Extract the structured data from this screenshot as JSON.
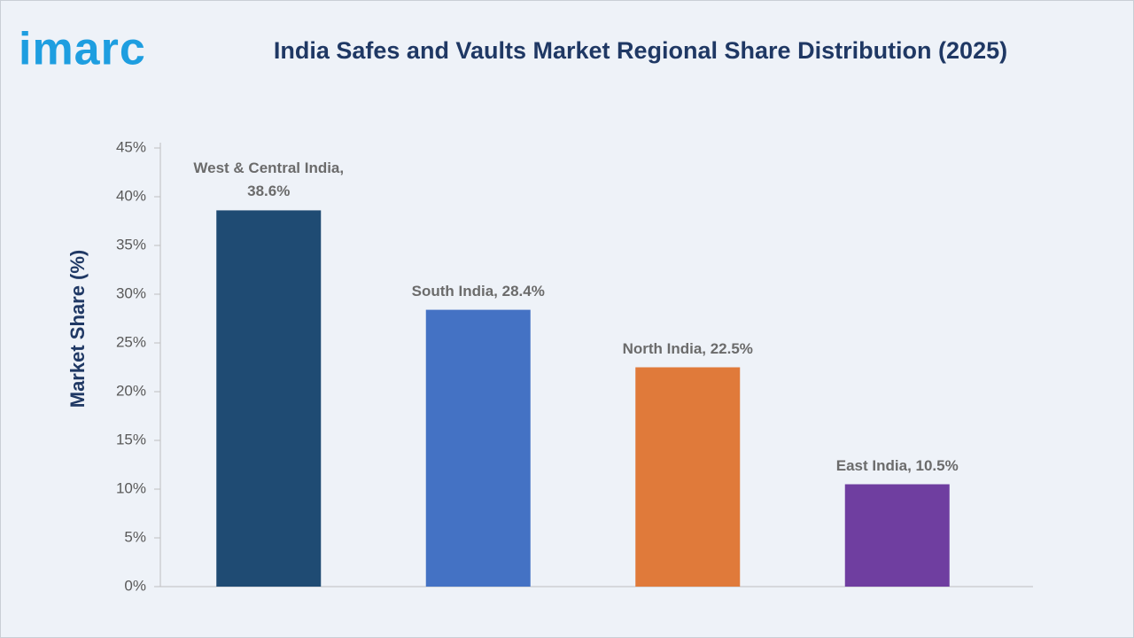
{
  "logo": "imarc",
  "chart_data": {
    "type": "bar",
    "title": "India Safes and Vaults Market Regional Share Distribution (2025)",
    "y_label": "Market Share (%)",
    "categories": [
      "West & Central India",
      "South India",
      "North India",
      "East India"
    ],
    "values": [
      38.6,
      28.4,
      22.5,
      10.5
    ],
    "value_labels": [
      "West & Central India, 38.6%",
      "South India, 28.4%",
      "North India, 22.5%",
      "East India, 10.5%"
    ],
    "colors": [
      "#1f4b73",
      "#4472c4",
      "#e07a3a",
      "#6f3ea0"
    ],
    "ylim": [
      0,
      45
    ],
    "yticks": [
      {
        "value": 0,
        "label": "0%"
      },
      {
        "value": 5,
        "label": "5%"
      },
      {
        "value": 10,
        "label": "10%"
      },
      {
        "value": 15,
        "label": "15%"
      },
      {
        "value": 20,
        "label": "20%"
      },
      {
        "value": 25,
        "label": "25%"
      },
      {
        "value": 30,
        "label": "30%"
      },
      {
        "value": 35,
        "label": "35%"
      },
      {
        "value": 40,
        "label": "40%"
      },
      {
        "value": 45,
        "label": "45%"
      }
    ],
    "grid": false
  }
}
